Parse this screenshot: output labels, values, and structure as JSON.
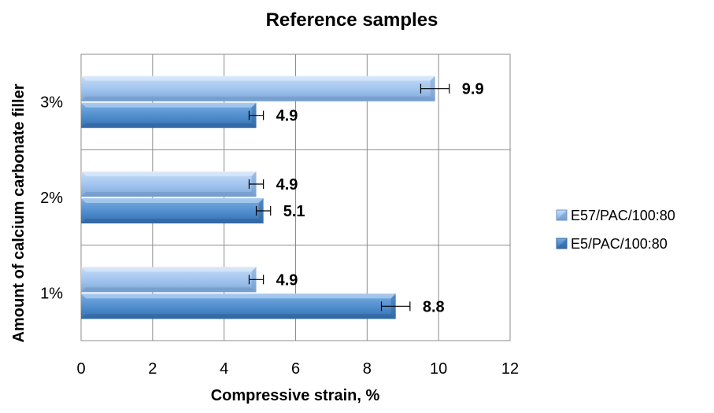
{
  "chart_data": {
    "type": "bar",
    "orientation": "horizontal",
    "title": "Reference samples",
    "xlabel": "Compressive strain, %",
    "ylabel": "Amount of calcium carbonate filler",
    "categories": [
      "1%",
      "2%",
      "3%"
    ],
    "xlim": [
      0,
      12
    ],
    "xticks": [
      0,
      2,
      4,
      6,
      8,
      10,
      12
    ],
    "grid": true,
    "legend_position": "right",
    "series": [
      {
        "name": "E57/PAC/100:80",
        "values": [
          4.9,
          4.9,
          9.9
        ],
        "errors": [
          0.2,
          0.2,
          0.4
        ],
        "color": "#9fc3ee",
        "color_dark": "#6e96c6"
      },
      {
        "name": "E5/PAC/100:80",
        "values": [
          8.8,
          5.1,
          4.9
        ],
        "errors": [
          0.4,
          0.2,
          0.2
        ],
        "color": "#4f8ccd",
        "color_dark": "#2f639c"
      }
    ],
    "data_labels": [
      [
        "4.9",
        "4.9",
        "9.9"
      ],
      [
        "8.8",
        "5.1",
        "4.9"
      ]
    ]
  }
}
